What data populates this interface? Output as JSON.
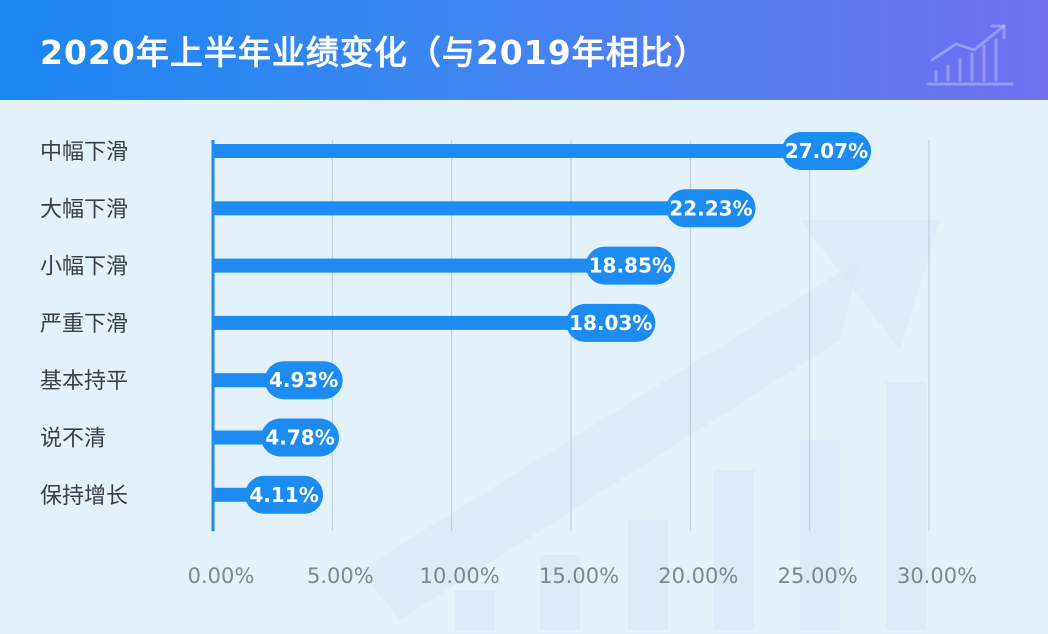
{
  "header": {
    "title": "2020年上半年业绩变化（与2019年相比）"
  },
  "colors": {
    "bar": "#1c8cf3",
    "header_start": "#1a86f2",
    "header_end": "#6f6ff0",
    "background": "#e3f1fb",
    "grid": "#b9c9d6",
    "axis_text": "#7f8890",
    "category_text": "#3a3f44"
  },
  "chart_data": {
    "type": "bar",
    "orientation": "horizontal",
    "title": "2020年上半年业绩变化（与2019年相比）",
    "xlabel": "",
    "ylabel": "",
    "categories": [
      "中幅下滑",
      "大幅下滑",
      "小幅下滑",
      "严重下滑",
      "基本持平",
      "说不清",
      "保持增长"
    ],
    "values": [
      27.07,
      22.23,
      18.85,
      18.03,
      4.93,
      4.78,
      4.11
    ],
    "value_labels": [
      "27.07%",
      "22.23%",
      "18.85%",
      "18.03%",
      "4.93%",
      "4.78%",
      "4.11%"
    ],
    "xlim": [
      0,
      30
    ],
    "xticks": [
      0,
      5,
      10,
      15,
      20,
      25,
      30
    ],
    "xtick_labels": [
      "0.00%",
      "5.00%",
      "10.00%",
      "15.00%",
      "20.00%",
      "25.00%",
      "30.00%"
    ],
    "grid": "vertical",
    "legend": "none"
  }
}
